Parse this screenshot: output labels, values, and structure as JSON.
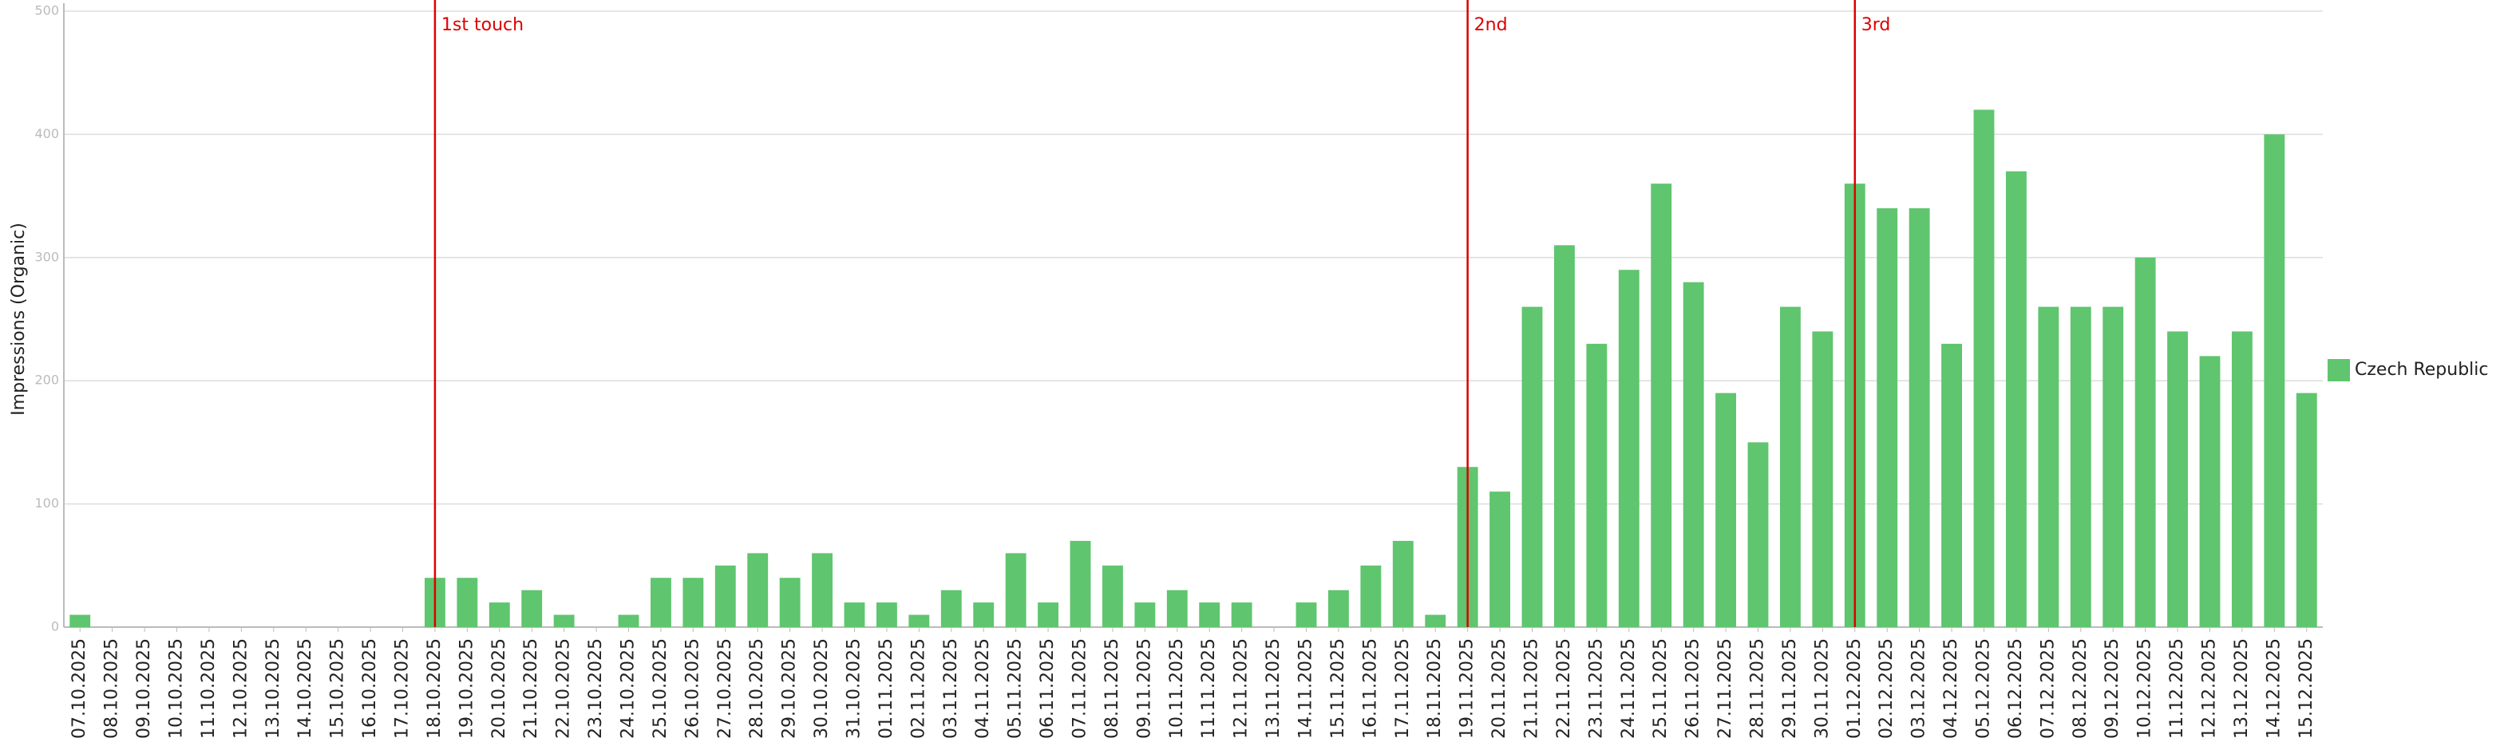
{
  "chart_data": {
    "type": "bar",
    "y_label": "Impressions (Organic)",
    "categories": [
      "07.10.2025",
      "08.10.2025",
      "09.10.2025",
      "10.10.2025",
      "11.10.2025",
      "12.10.2025",
      "13.10.2025",
      "14.10.2025",
      "15.10.2025",
      "16.10.2025",
      "17.10.2025",
      "18.10.2025",
      "19.10.2025",
      "20.10.2025",
      "21.10.2025",
      "22.10.2025",
      "23.10.2025",
      "24.10.2025",
      "25.10.2025",
      "26.10.2025",
      "27.10.2025",
      "28.10.2025",
      "29.10.2025",
      "30.10.2025",
      "31.10.2025",
      "01.11.2025",
      "02.11.2025",
      "03.11.2025",
      "04.11.2025",
      "05.11.2025",
      "06.11.2025",
      "07.11.2025",
      "08.11.2025",
      "09.11.2025",
      "10.11.2025",
      "11.11.2025",
      "12.11.2025",
      "13.11.2025",
      "14.11.2025",
      "15.11.2025",
      "16.11.2025",
      "17.11.2025",
      "18.11.2025",
      "19.11.2025",
      "20.11.2025",
      "21.11.2025",
      "22.11.2025",
      "23.11.2025",
      "24.11.2025",
      "25.11.2025",
      "26.11.2025",
      "27.11.2025",
      "28.11.2025",
      "29.11.2025",
      "30.11.2025",
      "01.12.2025",
      "02.12.2025",
      "03.12.2025",
      "04.12.2025",
      "05.12.2025",
      "06.12.2025",
      "07.12.2025",
      "08.12.2025",
      "09.12.2025",
      "10.12.2025",
      "11.12.2025",
      "12.12.2025",
      "13.12.2025",
      "14.12.2025",
      "15.12.2025"
    ],
    "series": [
      {
        "name": "Czech Republic",
        "color": "#5fc56e",
        "values": [
          10,
          0,
          0,
          0,
          0,
          0,
          0,
          0,
          0,
          0,
          0,
          40,
          40,
          20,
          30,
          10,
          0,
          10,
          40,
          40,
          50,
          60,
          40,
          60,
          20,
          20,
          10,
          30,
          20,
          60,
          20,
          70,
          50,
          20,
          30,
          20,
          20,
          0,
          20,
          30,
          50,
          70,
          10,
          130,
          110,
          260,
          310,
          230,
          290,
          360,
          280,
          190,
          150,
          260,
          240,
          360,
          340,
          340,
          230,
          420,
          370,
          260,
          260,
          260,
          300,
          240,
          220,
          240,
          400,
          190
        ]
      }
    ],
    "ylim": [
      0,
      500
    ],
    "yticks": [
      0,
      100,
      200,
      300,
      400,
      500
    ],
    "grid": true,
    "annotations": [
      {
        "x": "18.10.2025",
        "label": "1st touch"
      },
      {
        "x": "19.11.2025",
        "label": "2nd"
      },
      {
        "x": "01.12.2025",
        "label": "3rd"
      }
    ],
    "annotation_color": "#dd0000"
  }
}
